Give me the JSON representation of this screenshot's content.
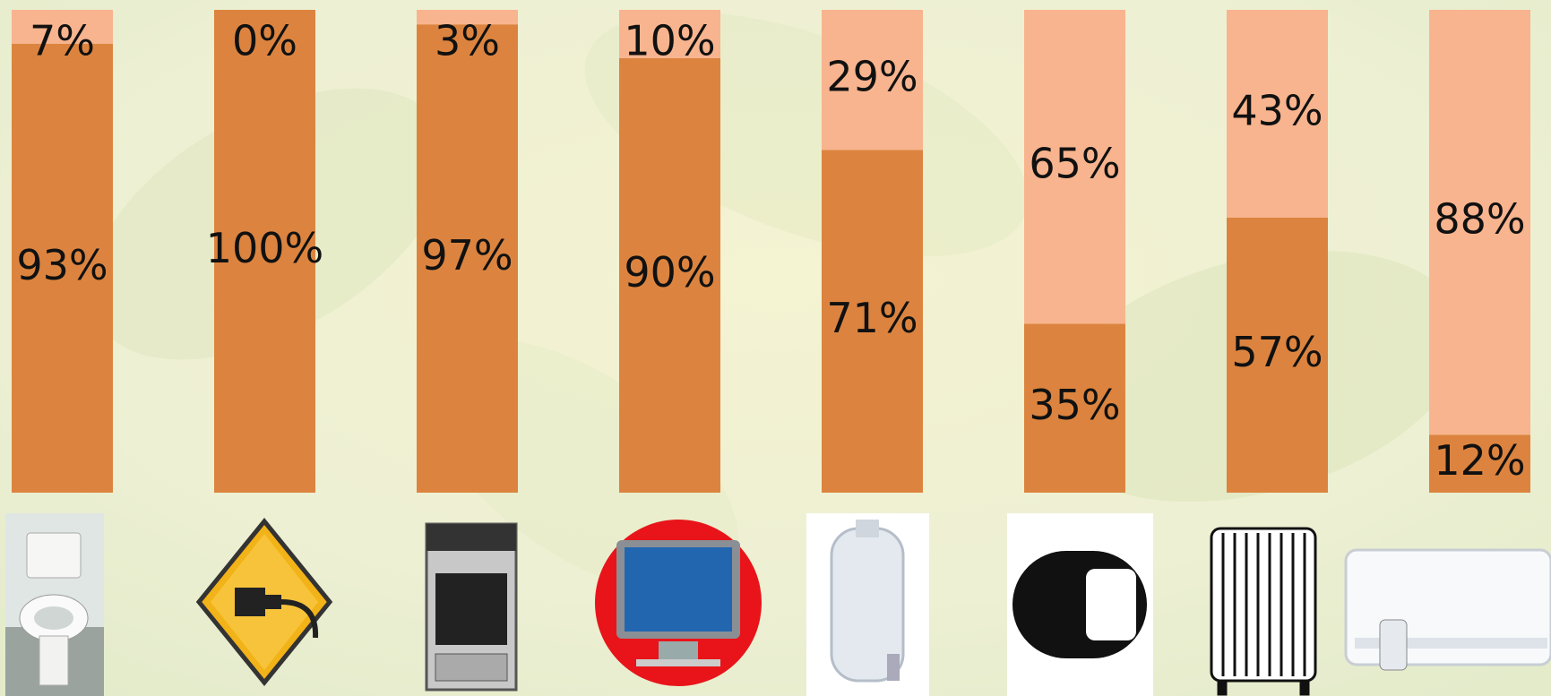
{
  "chart_data": {
    "type": "stacked-bar",
    "categories": [
      null,
      null,
      null,
      null,
      null,
      null,
      null,
      null
    ],
    "ylim": [
      0,
      100
    ],
    "series": [
      {
        "color": "#dc843f",
        "values": [
          93,
          100,
          97,
          90,
          71,
          35,
          57,
          12
        ],
        "value_labels": [
          "93%",
          "100%",
          "97%",
          "90%",
          "71%",
          "35%",
          "57%",
          "12%"
        ]
      },
      {
        "color": "#f8b48e",
        "values": [
          7,
          0,
          3,
          10,
          29,
          65,
          43,
          88
        ],
        "value_labels": [
          "7%",
          "0%",
          "3%",
          "10%",
          "29%",
          "65%",
          "43%",
          "88%"
        ]
      }
    ]
  }
}
